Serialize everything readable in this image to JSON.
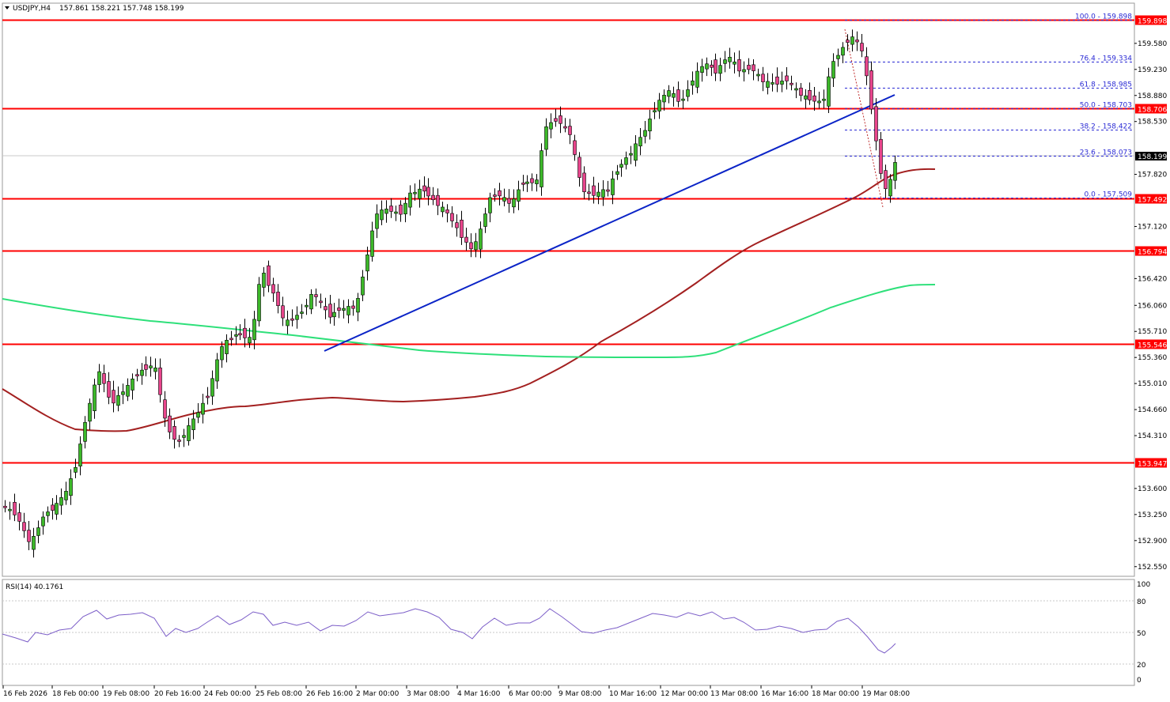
{
  "header": {
    "symbol": "USDJPY,H4",
    "ohlc": "157.861 158.221 157.748 158.199"
  },
  "rsi_panel": {
    "label": "RSI(14) 40.1761",
    "axis_ticks": [
      "100",
      "80",
      "50",
      "20",
      "0"
    ]
  },
  "colors": {
    "bull": "#3cb829",
    "bear": "#e8458c",
    "level": "#ff0000",
    "trendline": "#0b24c7",
    "ma_fast": "#a32020",
    "ma_slow": "#2ee07a",
    "rsi": "#7c5ec8",
    "fib": "#2a2ad4"
  },
  "chart_data": {
    "type": "candlestick",
    "ylim": [
      152.42,
      160.12
    ],
    "y_ticks": [
      "159.580",
      "159.230",
      "158.880",
      "158.530",
      "157.820",
      "157.120",
      "156.420",
      "156.060",
      "155.710",
      "155.360",
      "155.010",
      "154.660",
      "154.310",
      "153.600",
      "153.250",
      "152.900",
      "152.550"
    ],
    "x_labels": [
      "16 Feb 2026",
      "18 Feb 00:00",
      "19 Feb 08:00",
      "20 Feb 16:00",
      "24 Feb 00:00",
      "25 Feb 08:00",
      "26 Feb 16:00",
      "2 Mar 00:00",
      "3 Mar 08:00",
      "4 Mar 16:00",
      "6 Mar 00:00",
      "9 Mar 08:00",
      "10 Mar 16:00",
      "12 Mar 00:00",
      "13 Mar 08:00",
      "16 Mar 16:00",
      "18 Mar 00:00",
      "19 Mar 08:00"
    ],
    "current_price": "158.199",
    "horizontal_levels": [
      {
        "value": 159.898,
        "label": "159.898"
      },
      {
        "value": 158.706,
        "label": "158.706"
      },
      {
        "value": 157.492,
        "label": "157.492"
      },
      {
        "value": 156.794,
        "label": "156.794"
      },
      {
        "value": 155.546,
        "label": "155.546"
      },
      {
        "value": 153.947,
        "label": "153.947"
      }
    ],
    "fibonacci": [
      {
        "value": 159.898,
        "label": "100.0 - 159.898"
      },
      {
        "value": 159.334,
        "label": "76.4 - 159.334"
      },
      {
        "value": 158.985,
        "label": "61.8 - 158.985"
      },
      {
        "value": 158.703,
        "label": "50.0 - 158.703"
      },
      {
        "value": 158.422,
        "label": "38.2 - 158.422"
      },
      {
        "value": 158.073,
        "label": "23.6 - 158.073"
      },
      {
        "value": 157.509,
        "label": "0.0 - 157.509"
      }
    ]
  }
}
